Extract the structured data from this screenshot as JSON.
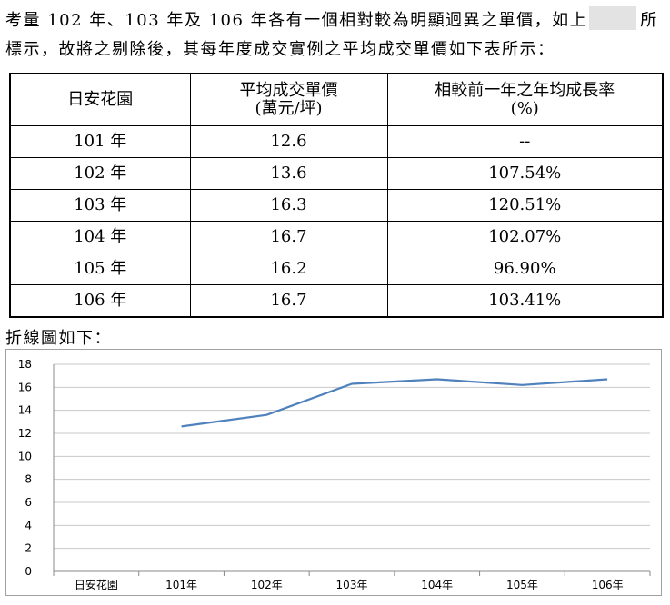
{
  "paragraph": {
    "line1_text": "考量 102 年、103 年及 106 年各有一個相對較為明顯迥異之單價，如上",
    "line1_end": "所",
    "line2_text": "標示，故將之剔除後，其每年度成交實例之平均成交單價如下表所示："
  },
  "table": {
    "headers": [
      {
        "line1": "日安花園",
        "line2": ""
      },
      {
        "line1": "平均成交單價",
        "line2": "(萬元/坪)"
      },
      {
        "line1": "相較前一年之年均成長率",
        "line2": "(%)"
      }
    ],
    "rows": [
      {
        "year": "101 年",
        "price": "12.6",
        "growth": "--"
      },
      {
        "year": "102 年",
        "price": "13.6",
        "growth": "107.54%"
      },
      {
        "year": "103 年",
        "price": "16.3",
        "growth": "120.51%"
      },
      {
        "year": "104 年",
        "price": "16.7",
        "growth": "102.07%"
      },
      {
        "year": "105 年",
        "price": "16.2",
        "growth": "96.90%"
      },
      {
        "year": "106 年",
        "price": "16.7",
        "growth": "103.41%"
      }
    ]
  },
  "caption": "折線圖如下：",
  "chart_data": {
    "type": "line",
    "categories": [
      "日安花園",
      "101年",
      "102年",
      "103年",
      "104年",
      "105年",
      "106年"
    ],
    "series": [
      {
        "values": [
          null,
          12.6,
          13.6,
          16.3,
          16.7,
          16.2,
          16.7
        ],
        "color": "#4f81bd"
      }
    ],
    "yticks": [
      0,
      2,
      4,
      6,
      8,
      10,
      12,
      14,
      16,
      18
    ],
    "ylim": [
      0,
      18
    ],
    "grid": true,
    "gridline_color": "#c8c8c8"
  }
}
